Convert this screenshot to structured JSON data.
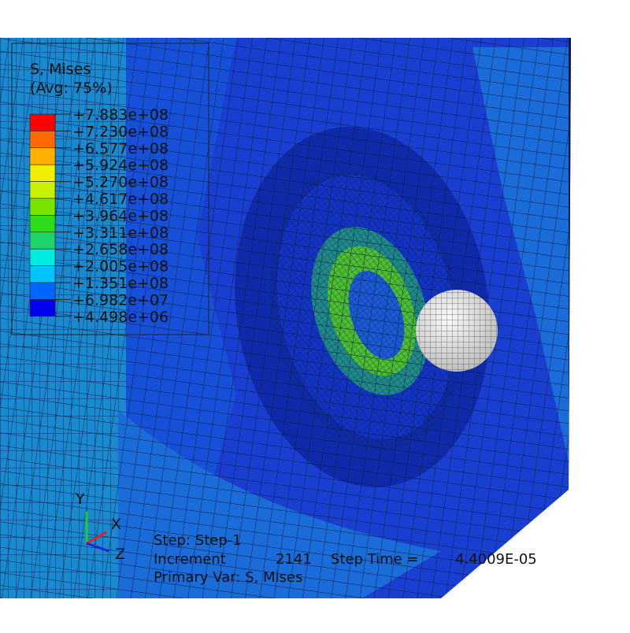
{
  "legend": {
    "title": "S, Mises",
    "subtitle": "(Avg: 75%)",
    "levels": [
      "+7.883e+08",
      "+7.230e+08",
      "+6.577e+08",
      "+5.924e+08",
      "+5.270e+08",
      "+4.617e+08",
      "+3.964e+08",
      "+3.311e+08",
      "+2.658e+08",
      "+2.005e+08",
      "+1.351e+08",
      "+6.982e+07",
      "+4.498e+06"
    ],
    "colors": [
      "#ff0000",
      "#ff6a00",
      "#ffb000",
      "#f2ee00",
      "#c8f000",
      "#78e400",
      "#2edc1a",
      "#1cd46a",
      "#00ece0",
      "#00c4ff",
      "#0066ff",
      "#0000f0"
    ]
  },
  "triad": {
    "y": "Y",
    "x": "X",
    "z": "Z"
  },
  "status": {
    "step": "Step: Step-1",
    "increment_label": "Increment",
    "increment": "2141",
    "time_label": "Step Time =",
    "time": "4.4009E-05",
    "primary_var": "Primary Var: S, Mises"
  }
}
